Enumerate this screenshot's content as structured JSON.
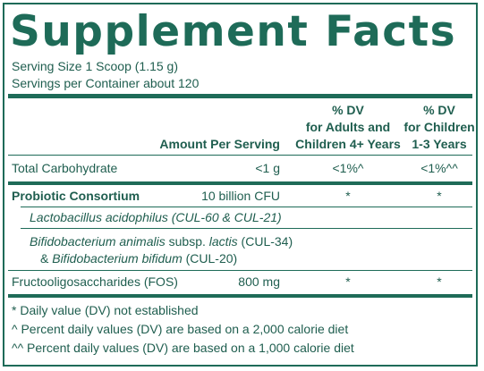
{
  "title": "Supplement Facts",
  "serving_size": "Serving Size 1 Scoop (1.15 g)",
  "servings_per_container": "Servings per Container about 120",
  "headers": {
    "amount": "Amount Per Serving",
    "dv_adults": [
      "% DV",
      "for Adults and",
      "Children 4+ Years"
    ],
    "dv_children": [
      "% DV",
      "for Children",
      "1-3 Years"
    ]
  },
  "rows": [
    {
      "name": "Total Carbohydrate",
      "amount": "<1 g",
      "dv_adults": "<1%^",
      "dv_children": "<1%^^"
    },
    {
      "name": "Probiotic Consortium",
      "amount": "10 billion CFU",
      "dv_adults": "*",
      "dv_children": "*"
    },
    {
      "name": "Fructooligosaccharides (FOS)",
      "amount": "800 mg",
      "dv_adults": "*",
      "dv_children": "*"
    }
  ],
  "strains": {
    "line1": "Lactobacillus acidophilus (CUL-60 & CUL-21)",
    "line2_italic_a": "Bifidobacterium animalis",
    "line2_plain": " subsp. ",
    "line2_italic_b": "lactis",
    "line2_end": " (CUL-34)",
    "line3_start": "& ",
    "line3_italic": "Bifidobacterium bifidum",
    "line3_end": " (CUL-20)"
  },
  "footnotes": [
    "* Daily value (DV) not established",
    "^ Percent daily values (DV) are based on a 2,000 calorie diet",
    "^^ Percent daily values (DV) are based on a 1,000 calorie diet"
  ],
  "colors": {
    "brand_green": "#1e6b58",
    "text": "#1f5e4f"
  }
}
